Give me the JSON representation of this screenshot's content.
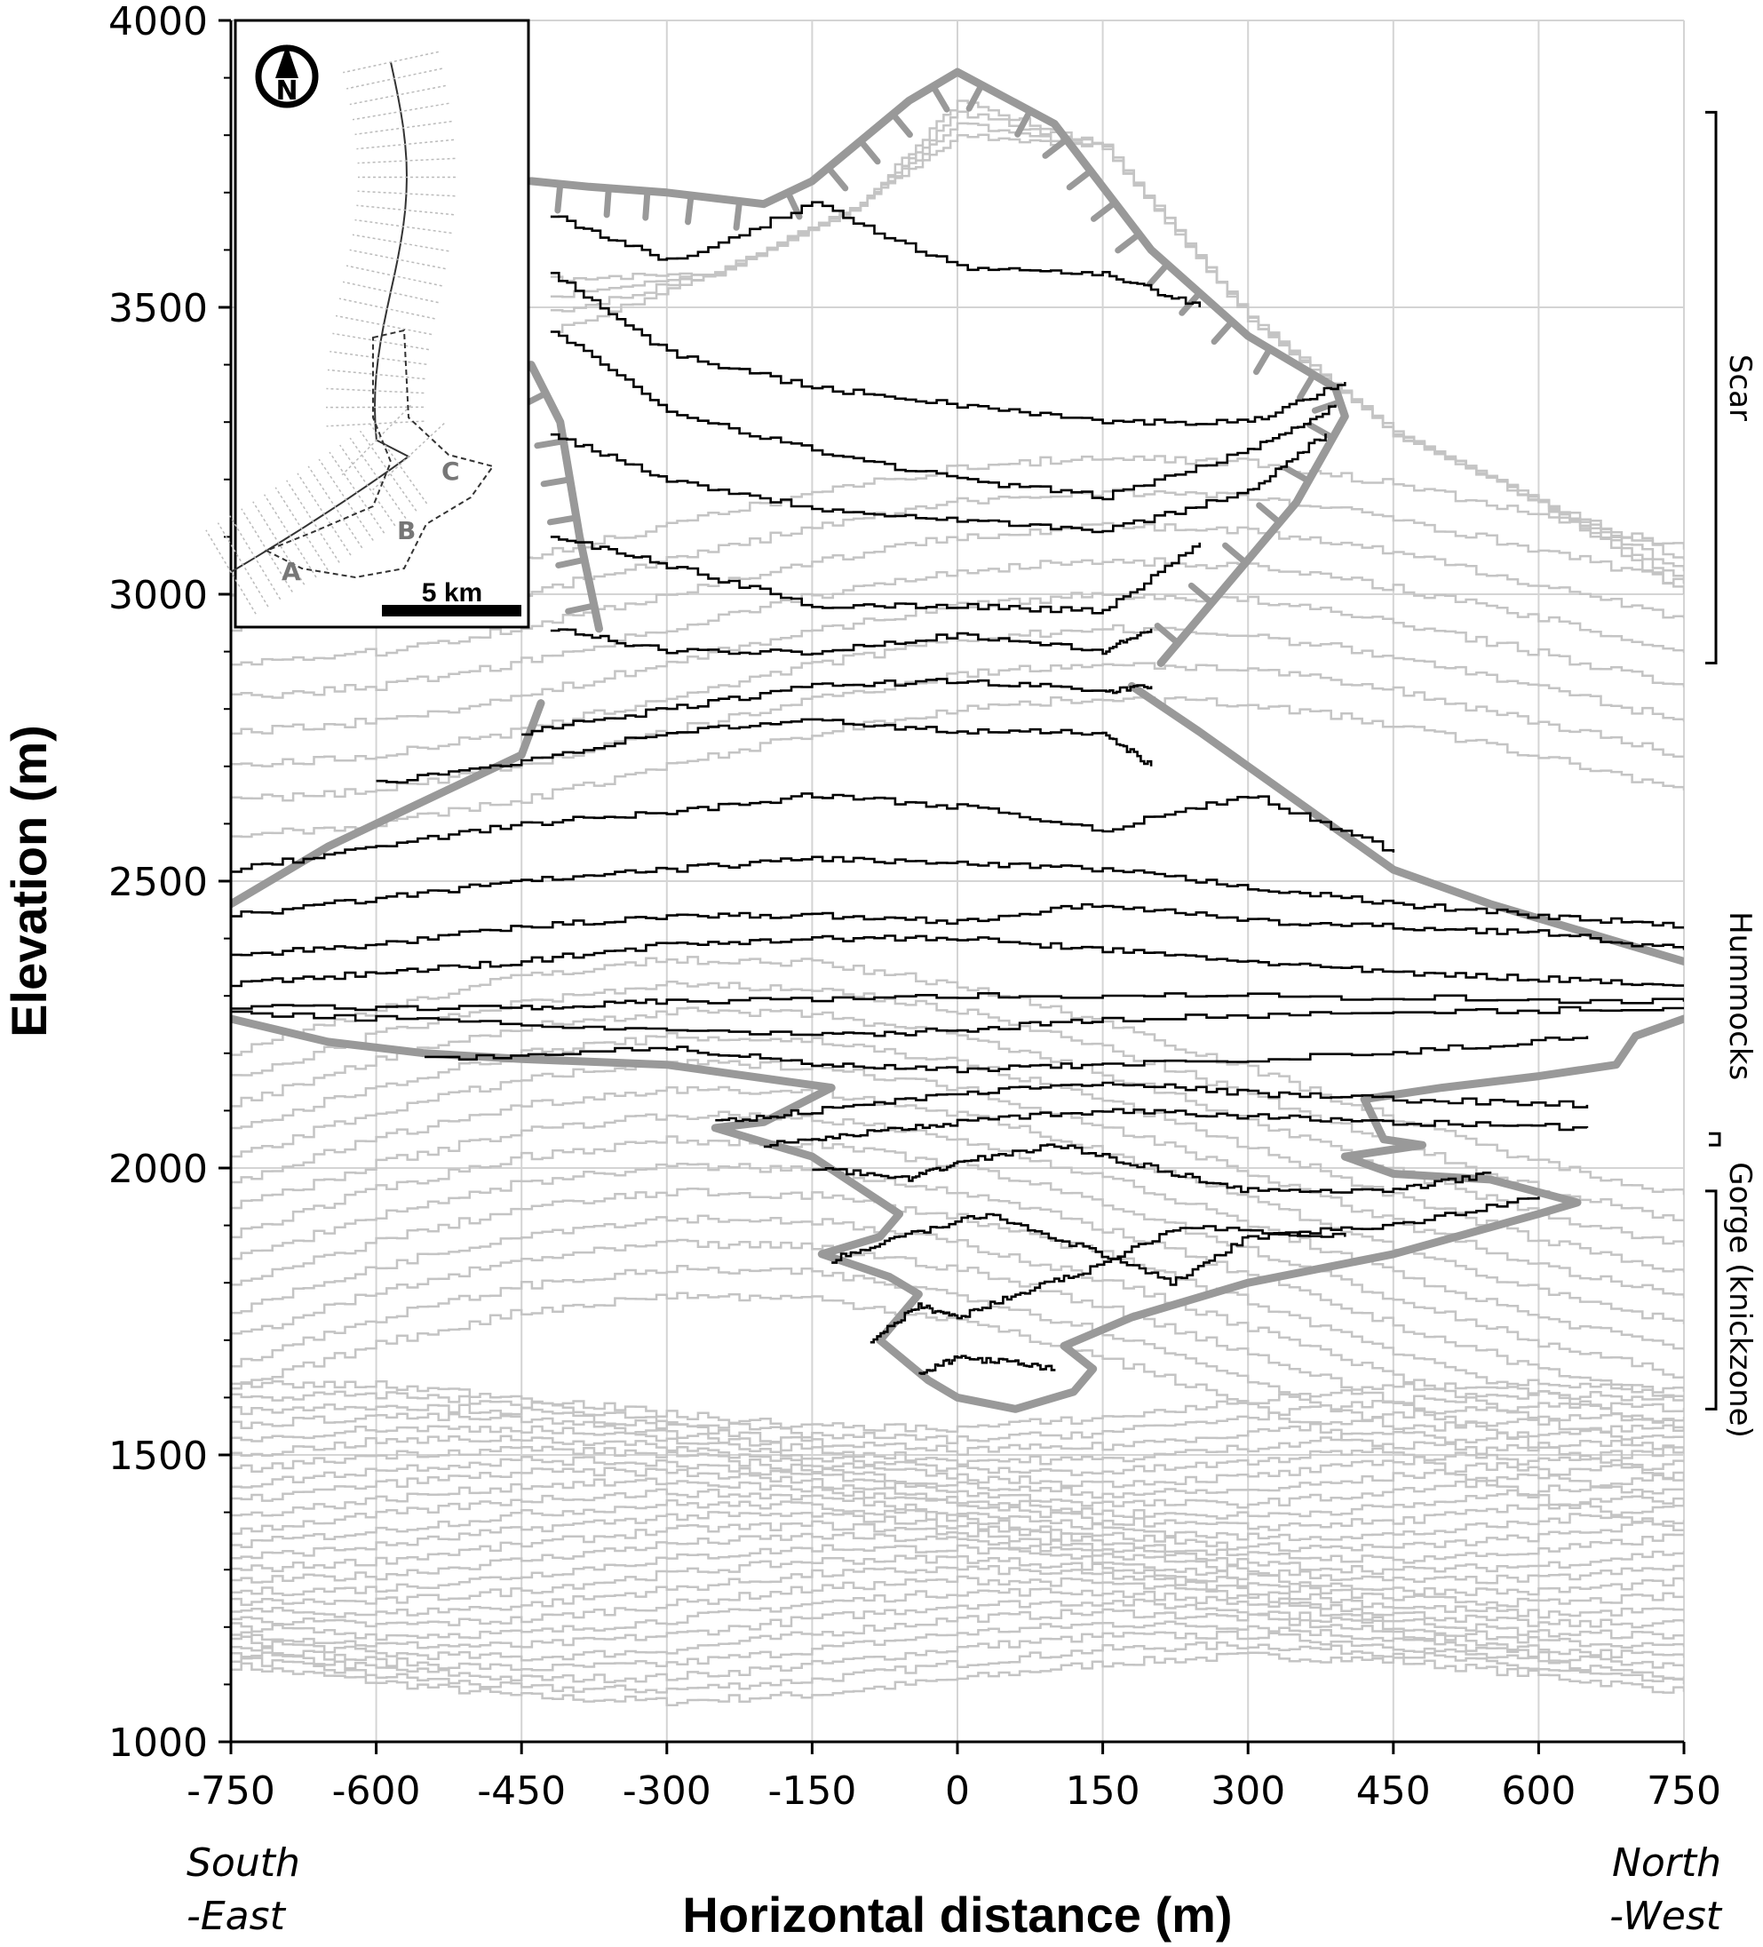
{
  "chart_data": {
    "type": "line",
    "xlabel": "Horizontal distance (m)",
    "ylabel": "Elevation (m)",
    "xlim": [
      -750,
      750
    ],
    "ylim": [
      1000,
      4000
    ],
    "x_ticks": [
      -750,
      -600,
      -450,
      -300,
      -150,
      0,
      150,
      300,
      450,
      600,
      750
    ],
    "y_ticks": [
      1000,
      1500,
      2000,
      2500,
      3000,
      3500,
      4000
    ],
    "y_minor_step": 100,
    "grid": true,
    "direction_labels": {
      "left": [
        "South",
        "-East"
      ],
      "right": [
        "North",
        "-West"
      ]
    },
    "zones": [
      {
        "name": "Scar",
        "y_range": [
          2880,
          3840
        ]
      },
      {
        "name": "Hummocks",
        "y_range": [
          2040,
          2060
        ]
      },
      {
        "name": "Gorge (knickzone)",
        "y_range": [
          1580,
          1960
        ]
      }
    ],
    "series_black": [
      {
        "x": [
          -750,
          -600,
          -450,
          -300,
          -150,
          0,
          150,
          300,
          450,
          600,
          750
        ],
        "y": [
          2320,
          2340,
          2360,
          2390,
          2400,
          2400,
          2380,
          2360,
          2340,
          2330,
          2320
        ]
      },
      {
        "x": [
          -750,
          -600,
          -450,
          -300,
          -150,
          0,
          150,
          300,
          450,
          600,
          750
        ],
        "y": [
          2370,
          2390,
          2420,
          2440,
          2440,
          2430,
          2460,
          2430,
          2420,
          2410,
          2380
        ]
      },
      {
        "x": [
          -750,
          -600,
          -450,
          -300,
          -150,
          0,
          150,
          300,
          450,
          600,
          750
        ],
        "y": [
          2440,
          2470,
          2500,
          2520,
          2540,
          2530,
          2520,
          2490,
          2460,
          2440,
          2420
        ]
      },
      {
        "x": [
          -750,
          -600,
          -450,
          -300,
          -150,
          0,
          150,
          300,
          450
        ],
        "y": [
          2520,
          2560,
          2600,
          2620,
          2650,
          2630,
          2590,
          2650,
          2550
        ]
      },
      {
        "x": [
          -600,
          -450,
          -300,
          -150,
          0,
          150,
          200
        ],
        "y": [
          2670,
          2710,
          2760,
          2780,
          2760,
          2760,
          2700
        ]
      },
      {
        "x": [
          -450,
          -300,
          -150,
          0,
          150,
          200
        ],
        "y": [
          2760,
          2800,
          2840,
          2850,
          2830,
          2840
        ]
      },
      {
        "x": [
          -420,
          -300,
          -150,
          0,
          150,
          200
        ],
        "y": [
          2940,
          2900,
          2900,
          2930,
          2900,
          2940
        ]
      },
      {
        "x": [
          -420,
          -300,
          -150,
          0,
          150,
          250
        ],
        "y": [
          3100,
          3050,
          2980,
          2980,
          2970,
          3090
        ]
      },
      {
        "x": [
          -420,
          -300,
          -150,
          0,
          150,
          300,
          380
        ],
        "y": [
          3280,
          3200,
          3150,
          3130,
          3110,
          3180,
          3280
        ]
      },
      {
        "x": [
          -420,
          -300,
          -150,
          0,
          150,
          300,
          390
        ],
        "y": [
          3460,
          3320,
          3250,
          3200,
          3170,
          3250,
          3330
        ]
      },
      {
        "x": [
          -420,
          -300,
          -150,
          0,
          150,
          300,
          400
        ],
        "y": [
          3560,
          3420,
          3360,
          3330,
          3300,
          3300,
          3370
        ]
      },
      {
        "x": [
          -420,
          -300,
          -150,
          0,
          150,
          250
        ],
        "y": [
          3660,
          3580,
          3680,
          3570,
          3560,
          3500
        ]
      },
      {
        "x": [
          -750,
          -450,
          -300,
          0,
          300,
          750
        ],
        "y": [
          2280,
          2280,
          2290,
          2300,
          2300,
          2290
        ]
      },
      {
        "x": [
          -750,
          -450,
          -150,
          0,
          150,
          450,
          750
        ],
        "y": [
          2270,
          2250,
          2230,
          2240,
          2260,
          2270,
          2280
        ]
      },
      {
        "x": [
          -550,
          -300,
          -150,
          0,
          150,
          450,
          650
        ],
        "y": [
          2190,
          2210,
          2180,
          2170,
          2180,
          2200,
          2230
        ]
      },
      {
        "x": [
          -250,
          -150,
          0,
          150,
          300,
          450,
          650
        ],
        "y": [
          2080,
          2100,
          2130,
          2150,
          2130,
          2120,
          2110
        ]
      },
      {
        "x": [
          -200,
          -100,
          0,
          150,
          300,
          450,
          650
        ],
        "y": [
          2040,
          2060,
          2080,
          2100,
          2090,
          2080,
          2070
        ]
      },
      {
        "x": [
          -150,
          -50,
          0,
          100,
          200,
          300,
          450,
          550
        ],
        "y": [
          2000,
          1980,
          2010,
          2040,
          2000,
          1960,
          1960,
          1990
        ]
      },
      {
        "x": [
          -130,
          -60,
          30,
          130,
          220,
          300,
          450,
          600
        ],
        "y": [
          1840,
          1880,
          1920,
          1860,
          1800,
          1880,
          1900,
          1950
        ]
      },
      {
        "x": [
          -90,
          -40,
          0,
          60,
          130,
          230,
          400
        ],
        "y": [
          1700,
          1760,
          1740,
          1780,
          1820,
          1900,
          1880
        ]
      },
      {
        "x": [
          -40,
          0,
          60,
          100
        ],
        "y": [
          1640,
          1670,
          1660,
          1650
        ]
      }
    ],
    "series_gray_count": 48,
    "outline_scar": {
      "x": [
        -440,
        -380,
        -300,
        -200,
        -150,
        -50,
        0,
        100,
        200,
        300,
        390,
        400,
        350,
        280,
        210
      ],
      "y": [
        3720,
        3710,
        3700,
        3680,
        3720,
        3860,
        3910,
        3820,
        3600,
        3450,
        3360,
        3310,
        3160,
        3020,
        2880
      ]
    },
    "outline_scar_left": {
      "x": [
        -440,
        -410,
        -390,
        -370
      ],
      "y": [
        3400,
        3300,
        3100,
        2940
      ]
    },
    "outline_hummocks_left": {
      "x": [
        -750,
        -650,
        -550,
        -450,
        -430
      ],
      "y": [
        2460,
        2560,
        2640,
        2720,
        2810
      ]
    },
    "outline_hummocks_right": {
      "x": [
        180,
        250,
        350,
        450,
        550,
        650,
        750
      ],
      "y": [
        2840,
        2760,
        2640,
        2520,
        2460,
        2410,
        2360
      ]
    },
    "outline_gorge": {
      "x": [
        -750,
        -650,
        -550,
        -450,
        -300,
        -130,
        -200,
        -250,
        -150,
        -60,
        -80,
        -140,
        -70,
        -40,
        -80,
        -30,
        0,
        60,
        120,
        140,
        110,
        180,
        300,
        450,
        600,
        640,
        550,
        450,
        400,
        480,
        440,
        420,
        500,
        600,
        680,
        700,
        750
      ],
      "y": [
        2260,
        2220,
        2200,
        2190,
        2180,
        2140,
        2080,
        2070,
        2020,
        1920,
        1880,
        1850,
        1810,
        1780,
        1700,
        1630,
        1600,
        1580,
        1610,
        1650,
        1690,
        1740,
        1800,
        1850,
        1920,
        1940,
        1980,
        1990,
        2020,
        2040,
        2050,
        2120,
        2140,
        2160,
        2180,
        2230,
        2260
      ]
    }
  },
  "inset_map": {
    "north_symbol": "N",
    "labels": [
      "A",
      "B",
      "C"
    ],
    "scale_label": "5 km"
  }
}
